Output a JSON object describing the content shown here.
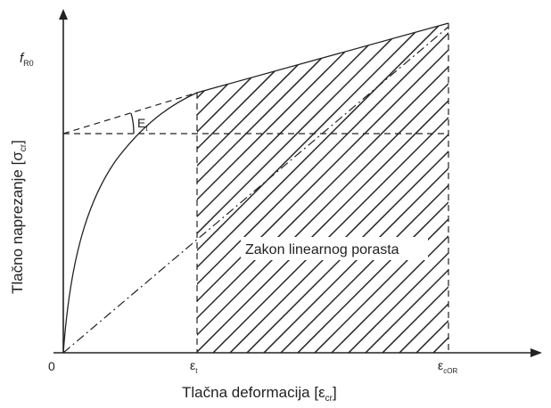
{
  "axes": {
    "y_label_main": "Tlačno naprezanje [σ",
    "y_label_sub": "cr",
    "y_label_close": "]",
    "x_label_main": "Tlačna deformacija [ε",
    "x_label_sub": "cr",
    "x_label_close": "]",
    "origin": "0"
  },
  "markers": {
    "fr0_main": "f",
    "fr0_sub": "R0",
    "et_main": "ε",
    "et_sub": "t",
    "ecr_main": "ε",
    "ecr_sub": "cOR",
    "E_main": "E",
    "E_sub": "t"
  },
  "region_label": "Zakon linearnog porasta"
}
